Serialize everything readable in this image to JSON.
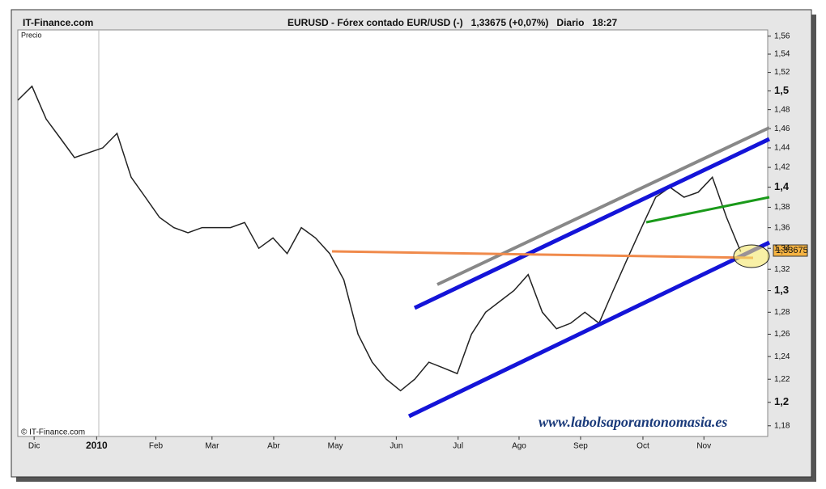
{
  "chart_data": {
    "type": "line",
    "source": "IT-Finance.com",
    "title": "EURUSD - Fórex contado EUR/USD (-)   1,33675 (+0,07%)   Diario   18:27",
    "ylabel": "Precio",
    "copyright": "© IT-Finance.com",
    "watermark": "www.labolsaporantonomasia.es",
    "price_tag": "1,33675",
    "log_scale": true,
    "xlim": [
      0,
      52.9
    ],
    "ylim": [
      1.171,
      1.567
    ],
    "xticks": [
      {
        "value": 1.15,
        "label": "Dic"
      },
      {
        "value": 5.56,
        "label": "2010"
      },
      {
        "value": 9.74,
        "label": "Feb"
      },
      {
        "value": 13.7,
        "label": "Mar"
      },
      {
        "value": 18.05,
        "label": "Abr"
      },
      {
        "value": 22.4,
        "label": "May"
      },
      {
        "value": 26.7,
        "label": "Jun"
      },
      {
        "value": 31.06,
        "label": "Jul"
      },
      {
        "value": 35.36,
        "label": "Ago"
      },
      {
        "value": 39.7,
        "label": "Sep"
      },
      {
        "value": 44.1,
        "label": "Oct"
      },
      {
        "value": 48.4,
        "label": "Nov"
      }
    ],
    "yticks": [
      {
        "value": 1.18,
        "label": "1,18"
      },
      {
        "value": 1.2,
        "label": "1,2"
      },
      {
        "value": 1.22,
        "label": "1,22"
      },
      {
        "value": 1.24,
        "label": "1,24"
      },
      {
        "value": 1.26,
        "label": "1,26"
      },
      {
        "value": 1.28,
        "label": "1,28"
      },
      {
        "value": 1.3,
        "label": "1,3"
      },
      {
        "value": 1.32,
        "label": "1,32"
      },
      {
        "value": 1.34,
        "label": "1,34"
      },
      {
        "value": 1.36,
        "label": "1,36"
      },
      {
        "value": 1.38,
        "label": "1,38"
      },
      {
        "value": 1.4,
        "label": "1,4"
      },
      {
        "value": 1.42,
        "label": "1,42"
      },
      {
        "value": 1.44,
        "label": "1,44"
      },
      {
        "value": 1.46,
        "label": "1,46"
      },
      {
        "value": 1.48,
        "label": "1,48"
      },
      {
        "value": 1.5,
        "label": "1,5"
      },
      {
        "value": 1.52,
        "label": "1,52"
      },
      {
        "value": 1.54,
        "label": "1,54"
      },
      {
        "value": 1.56,
        "label": "1,56"
      }
    ],
    "color": "#222222",
    "values": [
      1.49,
      1.505,
      1.47,
      1.45,
      1.43,
      1.435,
      1.44,
      1.455,
      1.41,
      1.39,
      1.37,
      1.36,
      1.355,
      1.36,
      1.36,
      1.36,
      1.365,
      1.34,
      1.35,
      1.335,
      1.36,
      1.35,
      1.335,
      1.31,
      1.26,
      1.235,
      1.22,
      1.21,
      1.22,
      1.235,
      1.23,
      1.225,
      1.26,
      1.28,
      1.29,
      1.3,
      1.315,
      1.28,
      1.265,
      1.27,
      1.28,
      1.27,
      1.3,
      1.33,
      1.36,
      1.39,
      1.4,
      1.39,
      1.395,
      1.41,
      1.37,
      1.33675
    ]
  }
}
